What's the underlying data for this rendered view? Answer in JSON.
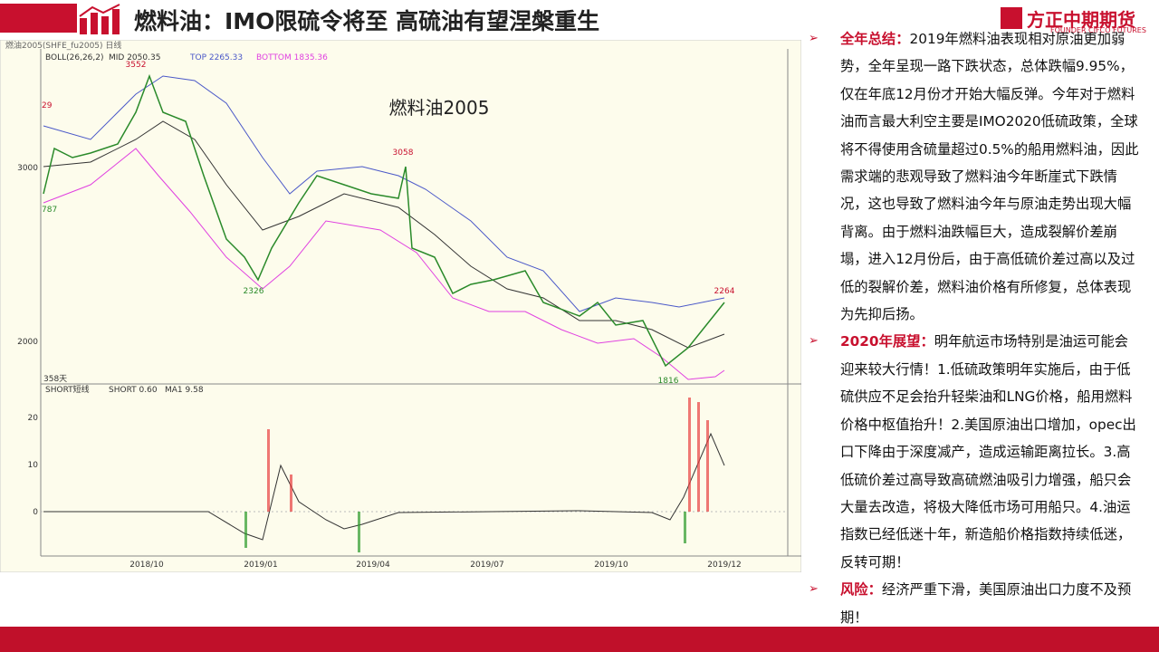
{
  "header": {
    "title": "燃料油：IMO限硫令将至  高硫油有望涅槃重生",
    "logo_text": "方正中期期货",
    "logo_sub": "FOUNDER CIFCO FUTURES"
  },
  "chart_panel": {
    "top_bar": "燃油2005(SHFE_fu2005)  日线",
    "boll_legend": [
      "BOLL(26,26,2)",
      "MID 2050.35",
      "TOP 2265.33",
      "BOTTOM 1835.36"
    ],
    "chart_title": "燃料油2005",
    "price_labels": [
      "3552",
      "3058",
      "2326",
      "1816",
      "2264",
      "29",
      "787"
    ],
    "y_labels": [
      "3000",
      "2000"
    ],
    "days_label": "358天",
    "sub_legend": [
      "SHORT短线",
      "SHORT 0.60",
      "MA1 9.58"
    ],
    "sub_y_labels": [
      "20",
      "10",
      "0"
    ],
    "dates": [
      "2018/10",
      "2019/01",
      "2019/04",
      "2019/07",
      "2019/10",
      "2019/12"
    ]
  },
  "points": [
    {
      "label": "全年总结：",
      "body": "2019年燃料油表现相对原油更加弱势，全年呈现一路下跌状态，总体跌幅9.95%，仅在年底12月份才开始大幅反弹。今年对于燃料油而言最大利空主要是IMO2020低硫政策，全球将不得使用含硫量超过0.5%的船用燃料油，因此需求端的悲观导致了燃料油今年断崖式下跌情况，这也导致了燃料油今年与原油走势出现大幅背离。由于燃料油跌幅巨大，造成裂解价差崩塌，进入12月份后，由于高低硫价差过高以及过低的裂解价差，燃料油价格有所修复，总体表现为先抑后扬。"
    },
    {
      "label": "2020年展望：",
      "body": "明年航运市场特别是油运可能会迎来较大行情！1.低硫政策明年实施后，由于低硫供应不足会抬升轻柴油和LNG价格，船用燃料价格中枢值抬升！2.美国原油出口增加，opec出口下降由于深度减产，造成运输距离拉长。3.高低硫价差过高导致高硫燃油吸引力增强，船只会大量去改造，将极大降低市场可用船只。4.油运指数已经低迷十年，新造船价格指数持续低迷，反转可期！"
    },
    {
      "label": "风险：",
      "body": "经济严重下滑，美国原油出口力度不及预期！"
    }
  ]
}
